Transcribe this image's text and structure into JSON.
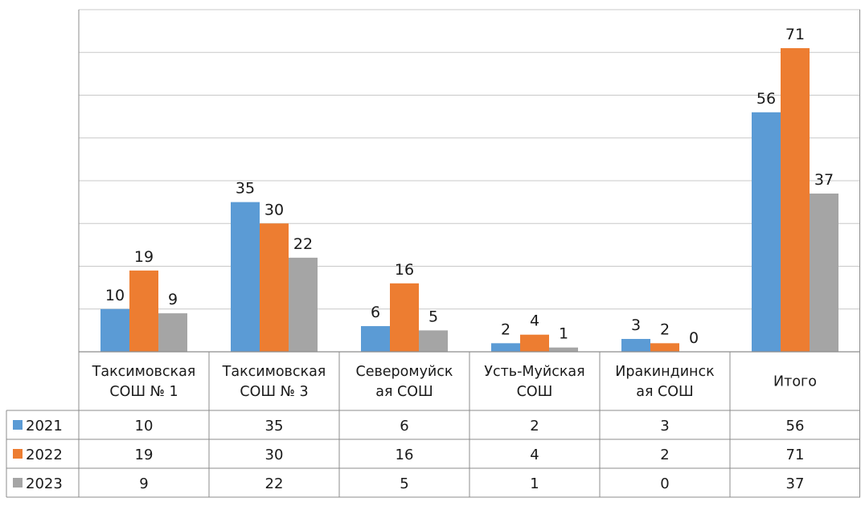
{
  "chart_data": {
    "type": "bar",
    "categories": [
      [
        "Таксимовская",
        "СОШ № 1"
      ],
      [
        "Таксимовская",
        "СОШ № 3"
      ],
      [
        "Северомуйск",
        "ая СОШ"
      ],
      [
        "Усть-Муйская",
        "СОШ"
      ],
      [
        "Иракиндинск",
        "ая СОШ"
      ],
      [
        "Итого"
      ]
    ],
    "series": [
      {
        "name": "2021",
        "color": "#5B9BD5",
        "values": [
          10,
          35,
          6,
          2,
          3,
          56
        ]
      },
      {
        "name": "2022",
        "color": "#ED7D31",
        "values": [
          19,
          30,
          16,
          4,
          2,
          71
        ]
      },
      {
        "name": "2023",
        "color": "#A5A5A5",
        "values": [
          9,
          22,
          5,
          1,
          0,
          37
        ]
      }
    ],
    "ylim": [
      0,
      80
    ],
    "grid": true,
    "data_labels": true,
    "data_table": true,
    "title": "",
    "xlabel": "",
    "ylabel": ""
  }
}
